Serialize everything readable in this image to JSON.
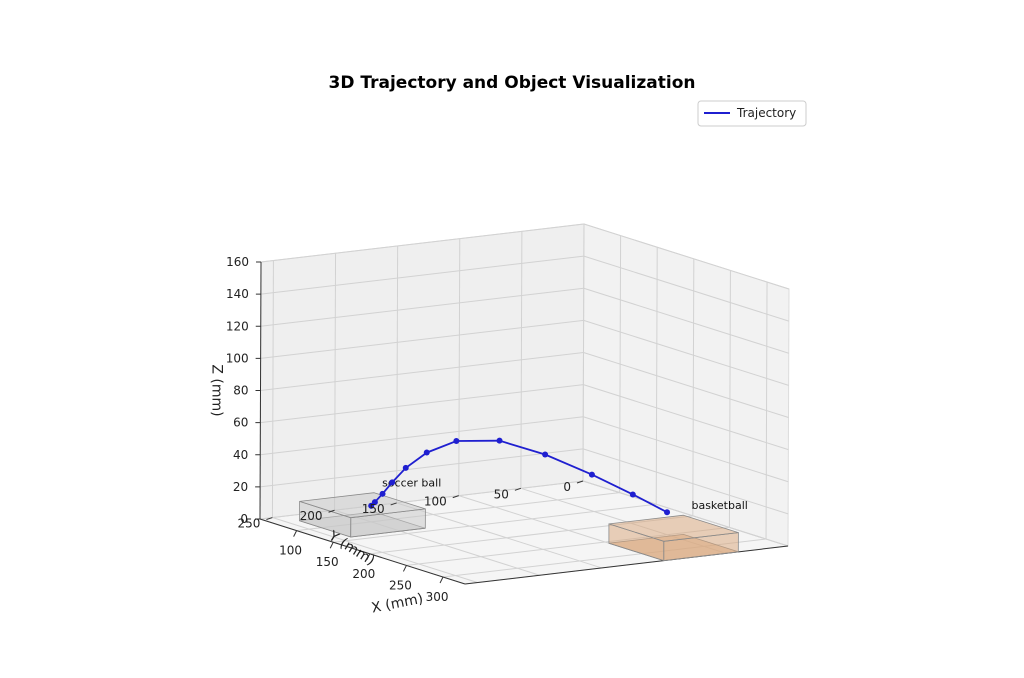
{
  "chart_data": {
    "type": "line",
    "title": "3D Trajectory and Object Visualization",
    "xlabel": "X (mm)",
    "ylabel": "Y (mm)",
    "zlabel": "Z (mm)",
    "x_ticks": [
      100,
      150,
      200,
      250,
      300
    ],
    "y_ticks": [
      0,
      50,
      100,
      150,
      200,
      250
    ],
    "z_ticks": [
      0,
      20,
      40,
      60,
      80,
      100,
      120,
      140,
      160
    ],
    "xlim": [
      50,
      330
    ],
    "ylim": [
      0,
      260
    ],
    "zlim": [
      0,
      160
    ],
    "grid": true,
    "legend": {
      "placement": "top-right",
      "entries": [
        "Trajectory"
      ]
    },
    "series": [
      {
        "name": "Trajectory",
        "color": "#1f1fd0",
        "points": [
          {
            "x": 100,
            "y": 200,
            "z": 10
          },
          {
            "x": 105,
            "y": 200,
            "z": 13
          },
          {
            "x": 112,
            "y": 198,
            "z": 19
          },
          {
            "x": 120,
            "y": 195,
            "z": 27
          },
          {
            "x": 130,
            "y": 190,
            "z": 37
          },
          {
            "x": 145,
            "y": 182,
            "z": 48
          },
          {
            "x": 165,
            "y": 170,
            "z": 57
          },
          {
            "x": 190,
            "y": 150,
            "z": 59
          },
          {
            "x": 215,
            "y": 128,
            "z": 52
          },
          {
            "x": 240,
            "y": 105,
            "z": 41
          },
          {
            "x": 262,
            "y": 85,
            "z": 30
          },
          {
            "x": 280,
            "y": 68,
            "z": 20
          }
        ]
      }
    ],
    "objects": [
      {
        "label": "soccer ball",
        "x": [
          70,
          140
        ],
        "y": [
          180,
          240
        ],
        "z": [
          0,
          12
        ],
        "color": "#c8c8c8"
      },
      {
        "label": "basketball",
        "x": [
          255,
          330
        ],
        "y": [
          40,
          100
        ],
        "z": [
          0,
          12
        ],
        "color": "#d9a67a"
      }
    ]
  }
}
